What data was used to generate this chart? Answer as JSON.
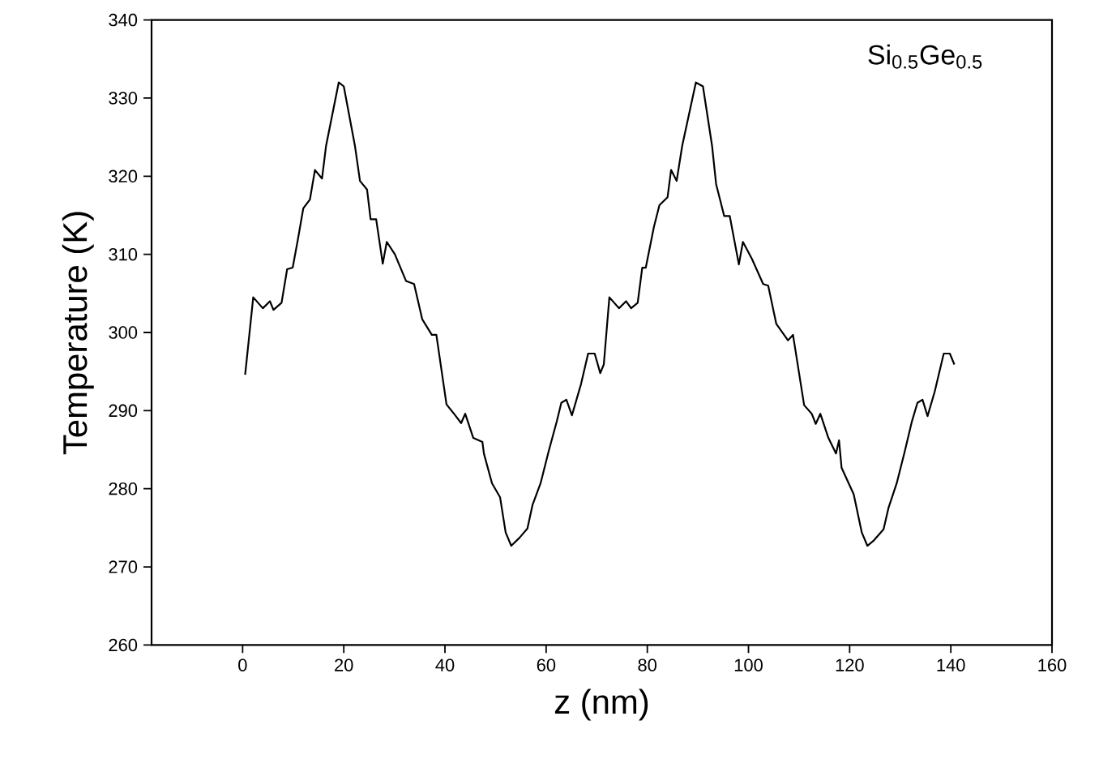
{
  "chart_data": {
    "type": "line",
    "xlabel": "z (nm)",
    "ylabel": "Temperature (K)",
    "annotations": [
      "Si$_{0.5}$Ge$_{0.5}$"
    ],
    "xlim": [
      -18,
      160
    ],
    "xticks": [
      0,
      20,
      40,
      60,
      80,
      100,
      120,
      140,
      160
    ],
    "ylim": [
      260,
      340
    ],
    "yticks": [
      260,
      270,
      280,
      290,
      300,
      310,
      320,
      330,
      340
    ],
    "grid": false,
    "marker": "none",
    "line_style": "solid",
    "series": [
      {
        "color": "#000000",
        "x": [
          0.5,
          2.1,
          4.0,
          5.4,
          6.1,
          7.7,
          8.8,
          9.9,
          10.9,
          12.0,
          13.3,
          14.3,
          15.7,
          16.5,
          19.0,
          20.0,
          22.2,
          23.2,
          24.6,
          25.3,
          26.4,
          27.7,
          28.5,
          30.1,
          32.3,
          33.9,
          35.5,
          37.4,
          38.3,
          40.3,
          41.9,
          43.2,
          44.0,
          45.6,
          47.4,
          47.7,
          49.3,
          50.9,
          52.0,
          53.1,
          54.7,
          56.3,
          57.3,
          58.9,
          60.5,
          62.1,
          63.0,
          64.0,
          65.1,
          66.9,
          68.3,
          69.6,
          70.7,
          71.4,
          72.5,
          74.4,
          75.8,
          76.8,
          78.1,
          79.0,
          79.7,
          81.3,
          82.4,
          84.0,
          84.7,
          85.8,
          86.9,
          89.6,
          91.0,
          92.8,
          93.6,
          95.2,
          96.3,
          98.1,
          98.9,
          100.7,
          102.9,
          103.9,
          105.5,
          107.8,
          108.8,
          111.0,
          112.5,
          113.3,
          114.2,
          115.8,
          117.3,
          117.9,
          118.4,
          120.8,
          122.4,
          123.5,
          124.8,
          126.7,
          127.7,
          129.3,
          130.9,
          132.3,
          133.4,
          134.4,
          135.4,
          136.8,
          138.6,
          139.8,
          140.7
        ],
        "values": [
          294.6,
          304.5,
          303.1,
          304.0,
          302.9,
          303.8,
          308.1,
          308.3,
          311.8,
          315.9,
          317.0,
          320.8,
          319.7,
          323.9,
          332.0,
          331.5,
          323.9,
          319.4,
          318.3,
          314.5,
          314.5,
          308.8,
          311.6,
          310.0,
          306.6,
          306.2,
          301.7,
          299.7,
          299.7,
          290.8,
          289.5,
          288.4,
          289.6,
          286.5,
          286.0,
          284.5,
          280.7,
          278.9,
          274.4,
          272.7,
          273.7,
          274.9,
          277.9,
          280.7,
          284.8,
          288.6,
          291.0,
          291.4,
          289.4,
          293.4,
          297.3,
          297.3,
          294.8,
          295.9,
          304.5,
          303.1,
          304.0,
          303.1,
          303.8,
          308.3,
          308.3,
          313.5,
          316.3,
          317.3,
          320.8,
          319.4,
          323.9,
          332.0,
          331.5,
          323.9,
          319.0,
          314.9,
          314.9,
          308.7,
          311.6,
          309.4,
          306.2,
          306.0,
          301.1,
          299.0,
          299.7,
          290.7,
          289.6,
          288.3,
          289.6,
          286.5,
          284.5,
          286.2,
          282.7,
          279.3,
          274.4,
          272.7,
          273.4,
          274.8,
          277.6,
          280.7,
          284.8,
          288.6,
          291.0,
          291.4,
          289.3,
          292.4,
          297.3,
          297.3,
          295.9
        ]
      }
    ]
  }
}
